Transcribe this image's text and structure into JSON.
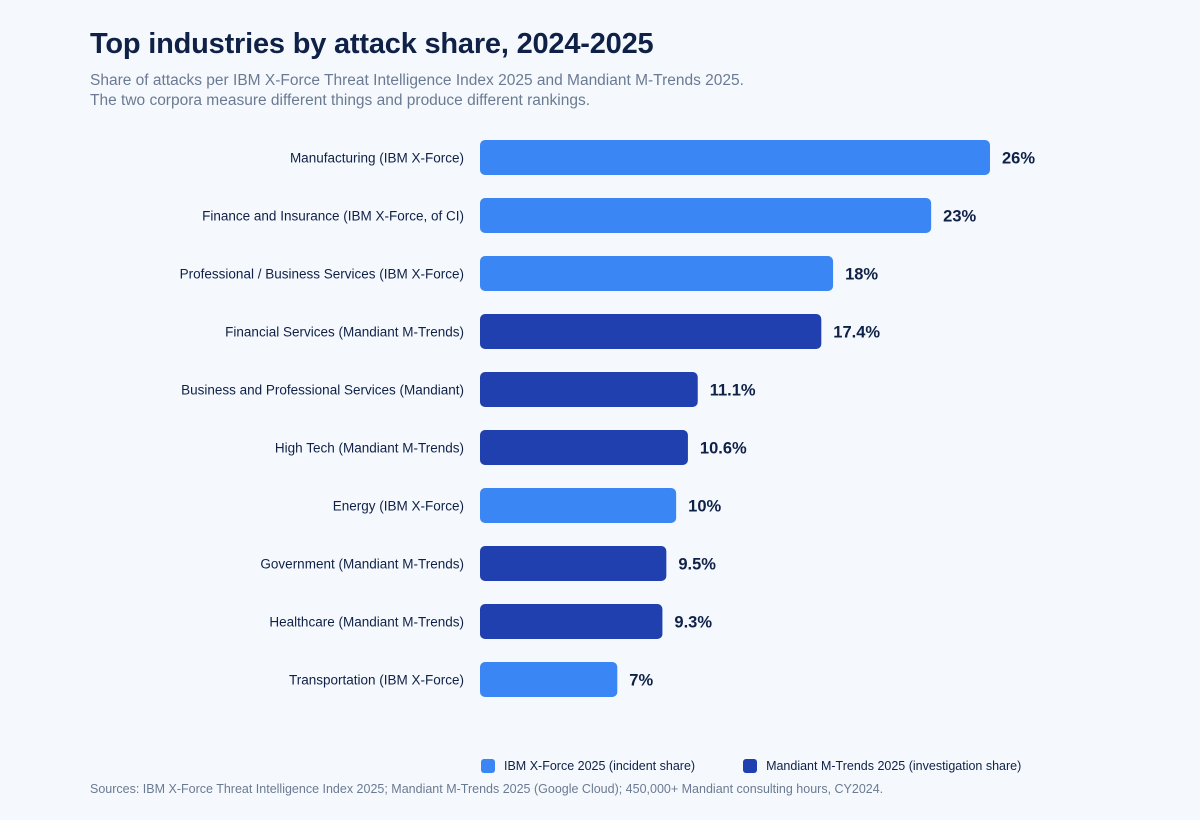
{
  "chart_data": {
    "type": "bar",
    "orientation": "horizontal",
    "title": "Top industries by attack share, 2024-2025",
    "subtitle_lines": [
      "Share of attacks per IBM X-Force Threat Intelligence Index 2025 and Mandiant M-Trends 2025.",
      "The two corpora measure different things and produce different rankings."
    ],
    "xlim": [
      0,
      30
    ],
    "grid": false,
    "legend_position": "bottom",
    "categories": [
      "Manufacturing (IBM X-Force)",
      "Finance and Insurance (IBM X-Force, of CI)",
      "Professional / Business Services (IBM X-Force)",
      "Financial Services (Mandiant M-Trends)",
      "Business and Professional Services (Mandiant)",
      "High Tech (Mandiant M-Trends)",
      "Energy (IBM X-Force)",
      "Government (Mandiant M-Trends)",
      "Healthcare (Mandiant M-Trends)",
      "Transportation (IBM X-Force)"
    ],
    "values": [
      26,
      23,
      18,
      17.4,
      11.1,
      10.6,
      10,
      9.5,
      9.3,
      7
    ],
    "value_labels": [
      "26%",
      "23%",
      "18%",
      "17.4%",
      "11.1%",
      "10.6%",
      "10%",
      "9.5%",
      "9.3%",
      "7%"
    ],
    "series_index": [
      0,
      0,
      0,
      1,
      1,
      1,
      0,
      1,
      1,
      0
    ],
    "series": [
      {
        "name": "IBM X-Force 2025 (incident share)",
        "color": "#3b86f5"
      },
      {
        "name": "Mandiant M-Trends 2025 (investigation share)",
        "color": "#1f40ae"
      }
    ],
    "source_note": "Sources: IBM X-Force Threat Intelligence Index 2025; Mandiant M-Trends 2025 (Google Cloud); 450,000+ Mandiant consulting hours, CY2024."
  }
}
